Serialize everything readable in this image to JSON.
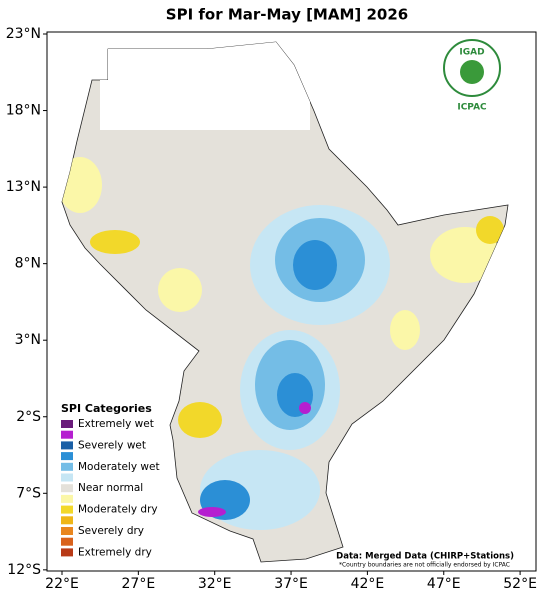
{
  "title": "SPI for Mar-May [MAM] 2026",
  "axes": {
    "x": [
      {
        "value": 22,
        "label": "22°E"
      },
      {
        "value": 27,
        "label": "27°E"
      },
      {
        "value": 32,
        "label": "32°E"
      },
      {
        "value": 37,
        "label": "37°E"
      },
      {
        "value": 42,
        "label": "42°E"
      },
      {
        "value": 47,
        "label": "47°E"
      },
      {
        "value": 52,
        "label": "52°E"
      }
    ],
    "y": [
      {
        "value": 23,
        "label": "23°N"
      },
      {
        "value": 18,
        "label": "18°N"
      },
      {
        "value": 13,
        "label": "13°N"
      },
      {
        "value": 8,
        "label": "8°N"
      },
      {
        "value": 3,
        "label": "3°N"
      },
      {
        "value": -2,
        "label": "2°S"
      },
      {
        "value": -7,
        "label": "7°S"
      },
      {
        "value": -12,
        "label": "12°S"
      }
    ]
  },
  "legend": {
    "title": "SPI Categories",
    "items": [
      {
        "label": "Extremely wet",
        "color": "#6a1b7a"
      },
      {
        "label": null,
        "color": "#b51fd0"
      },
      {
        "label": "Severely wet",
        "color": "#1a5fa6"
      },
      {
        "label": null,
        "color": "#2b8fd6"
      },
      {
        "label": "Moderately wet",
        "color": "#74bde6"
      },
      {
        "label": null,
        "color": "#c6e6f4"
      },
      {
        "label": "Near normal",
        "color": "#e4e1da"
      },
      {
        "label": null,
        "color": "#fbf7a8"
      },
      {
        "label": "Moderately dry",
        "color": "#f2d82a"
      },
      {
        "label": null,
        "color": "#efb617"
      },
      {
        "label": "Severely dry",
        "color": "#e9861f"
      },
      {
        "label": null,
        "color": "#d9621c"
      },
      {
        "label": "Extremely dry",
        "color": "#b83a16"
      }
    ]
  },
  "source": "Data: Merged Data (CHIRP+Stations)",
  "disclaimer": "*Country boundaries are not officially endorsed by ICPAC",
  "logo": {
    "top": "IGAD",
    "bottom": "ICPAC"
  }
}
